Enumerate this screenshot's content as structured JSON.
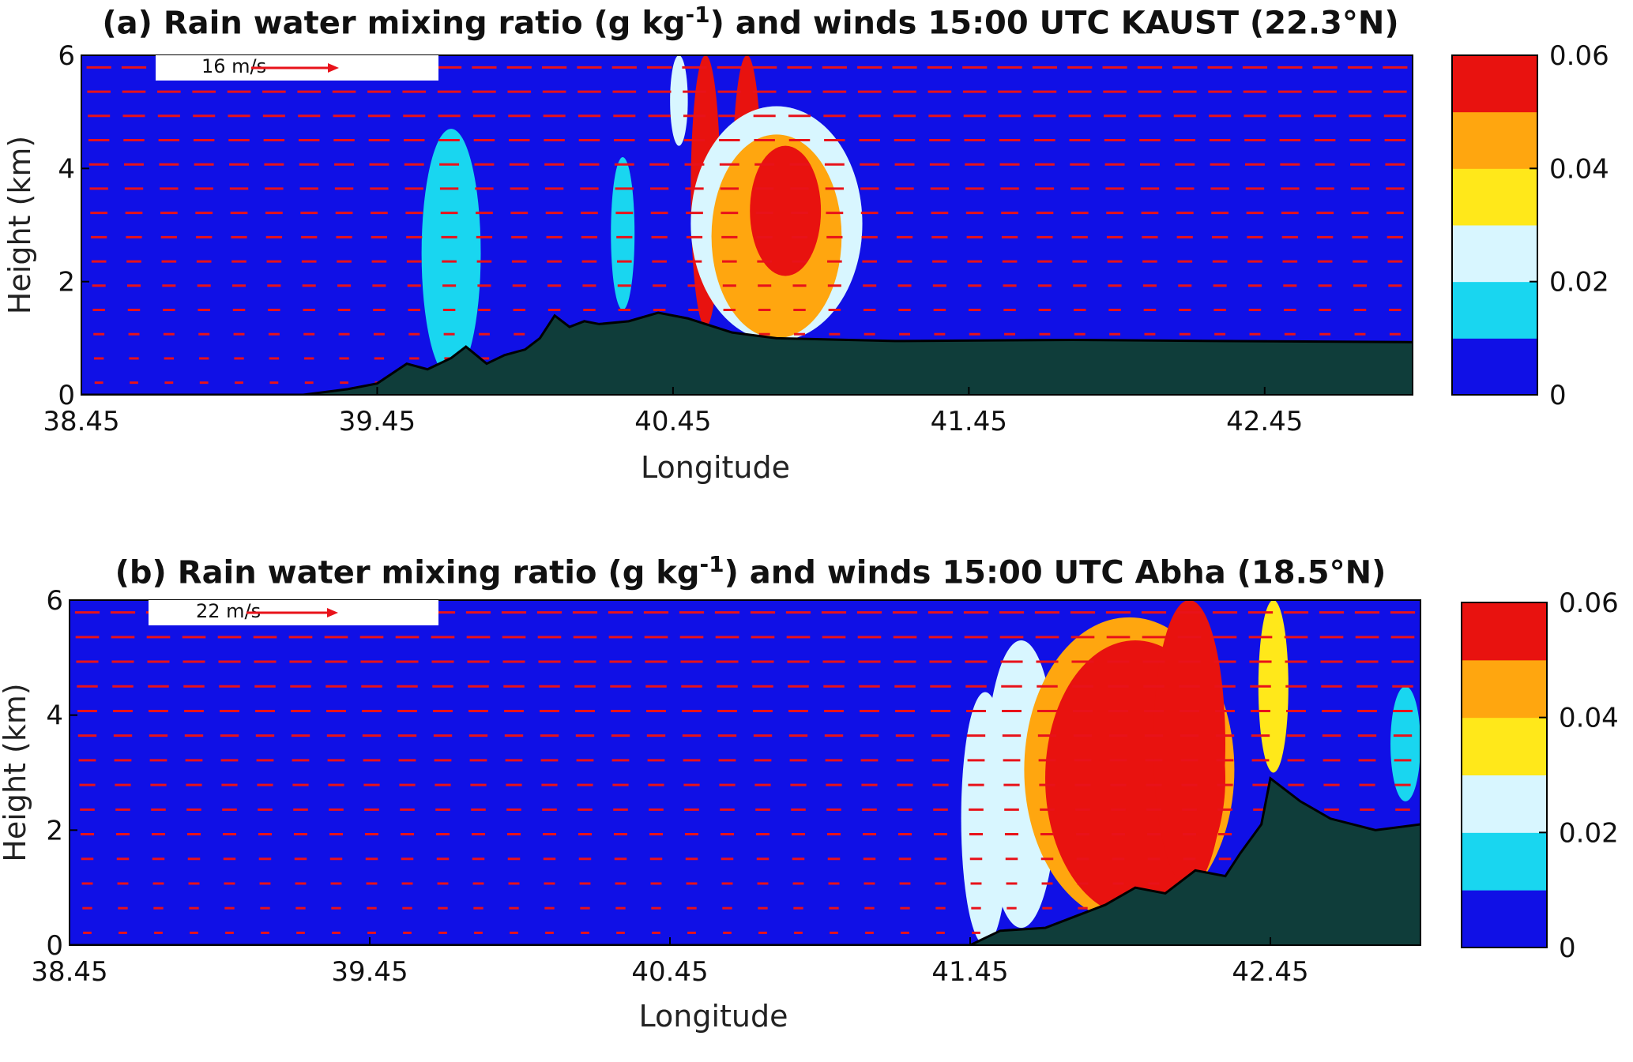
{
  "chart_data": [
    {
      "type": "heatmap",
      "title_parts": {
        "pre": "(a) Rain water mixing ratio (g kg",
        "sup": "-1",
        "post": ") and winds 15:00 UTC KAUST (22.3°N)"
      },
      "xlabel": "Longitude",
      "ylabel": "Height (km)",
      "xlim": [
        38.45,
        42.95
      ],
      "ylim": [
        0,
        6
      ],
      "x_ticks": [
        "38.45",
        "39.45",
        "40.45",
        "41.45",
        "42.45"
      ],
      "y_ticks": [
        "0",
        "2",
        "4",
        "6"
      ],
      "colorbar": {
        "ticks": [
          "0",
          "0.02",
          "0.04",
          "0.06"
        ],
        "range": [
          0,
          0.06
        ],
        "levels": [
          "#1010e6",
          "#19d6f0",
          "#d8f6ff",
          "#ffe81a",
          "#ffa60f",
          "#e8120f"
        ]
      },
      "wind_reference": {
        "label": "16 m/s"
      },
      "background_color": "#1010e6",
      "terrain_color": "#0f3d3a",
      "vector_color": "#e8121a",
      "terrain_km": [
        [
          38.45,
          0.0
        ],
        [
          39.2,
          0.0
        ],
        [
          39.35,
          0.1
        ],
        [
          39.45,
          0.2
        ],
        [
          39.55,
          0.55
        ],
        [
          39.62,
          0.45
        ],
        [
          39.7,
          0.65
        ],
        [
          39.75,
          0.85
        ],
        [
          39.82,
          0.55
        ],
        [
          39.88,
          0.7
        ],
        [
          39.95,
          0.8
        ],
        [
          40.0,
          1.0
        ],
        [
          40.05,
          1.4
        ],
        [
          40.1,
          1.2
        ],
        [
          40.15,
          1.3
        ],
        [
          40.2,
          1.25
        ],
        [
          40.3,
          1.3
        ],
        [
          40.4,
          1.45
        ],
        [
          40.5,
          1.35
        ],
        [
          40.65,
          1.1
        ],
        [
          40.8,
          1.0
        ],
        [
          41.2,
          0.95
        ],
        [
          41.8,
          0.97
        ],
        [
          42.3,
          0.95
        ],
        [
          42.95,
          0.93
        ]
      ],
      "rain_regions": [
        {
          "label": "cell-39.7",
          "x_center": 39.7,
          "x_half_width": 0.1,
          "y_bottom": 0.3,
          "y_top": 4.7,
          "value": 0.015
        },
        {
          "label": "cell-40.3",
          "x_center": 40.28,
          "x_half_width": 0.04,
          "y_bottom": 1.5,
          "y_top": 4.2,
          "value": 0.01
        },
        {
          "label": "cell-40.5",
          "x_center": 40.47,
          "x_half_width": 0.03,
          "y_bottom": 4.4,
          "y_top": 6.0,
          "value": 0.02
        },
        {
          "label": "core-40.55",
          "x_center": 40.56,
          "x_half_width": 0.05,
          "y_bottom": 1.2,
          "y_top": 6.0,
          "value": 0.06
        },
        {
          "label": "core-40.65",
          "x_center": 40.7,
          "x_half_width": 0.05,
          "y_bottom": 1.2,
          "y_top": 6.0,
          "value": 0.06
        },
        {
          "label": "cell-40.75",
          "x_center": 40.8,
          "x_half_width": 0.29,
          "y_bottom": 0.95,
          "y_top": 5.1,
          "value": 0.02
        },
        {
          "label": "cell-40.75-mid",
          "x_center": 40.8,
          "x_half_width": 0.22,
          "y_bottom": 1.0,
          "y_top": 4.6,
          "value": 0.04
        },
        {
          "label": "core-40.9",
          "x_center": 40.83,
          "x_half_width": 0.12,
          "y_bottom": 2.1,
          "y_top": 4.4,
          "value": 0.06
        }
      ]
    },
    {
      "type": "heatmap",
      "title_parts": {
        "pre": "(b) Rain water mixing ratio (g kg",
        "sup": "-1",
        "post": ") and winds 15:00 UTC Abha (18.5°N)"
      },
      "xlabel": "Longitude",
      "ylabel": "Height (km)",
      "xlim": [
        38.45,
        42.95
      ],
      "ylim": [
        0,
        6
      ],
      "x_ticks": [
        "38.45",
        "39.45",
        "40.45",
        "41.45",
        "42.45"
      ],
      "y_ticks": [
        "0",
        "2",
        "4",
        "6"
      ],
      "colorbar": {
        "ticks": [
          "0",
          "0.02",
          "0.04",
          "0.06"
        ],
        "range": [
          0,
          0.06
        ],
        "levels": [
          "#1010e6",
          "#19d6f0",
          "#d8f6ff",
          "#ffe81a",
          "#ffa60f",
          "#e8120f"
        ]
      },
      "wind_reference": {
        "label": "22 m/s"
      },
      "background_color": "#1010e6",
      "terrain_color": "#0f3d3a",
      "vector_color": "#e8121a",
      "terrain_km": [
        [
          38.45,
          0.0
        ],
        [
          41.45,
          0.0
        ],
        [
          41.55,
          0.25
        ],
        [
          41.7,
          0.3
        ],
        [
          41.8,
          0.5
        ],
        [
          41.9,
          0.7
        ],
        [
          42.0,
          1.0
        ],
        [
          42.1,
          0.9
        ],
        [
          42.2,
          1.3
        ],
        [
          42.3,
          1.2
        ],
        [
          42.35,
          1.6
        ],
        [
          42.42,
          2.1
        ],
        [
          42.45,
          2.9
        ],
        [
          42.55,
          2.5
        ],
        [
          42.65,
          2.2
        ],
        [
          42.8,
          2.0
        ],
        [
          42.95,
          2.1
        ]
      ],
      "rain_regions": [
        {
          "label": "cell-41.45",
          "x_center": 41.5,
          "x_half_width": 0.08,
          "y_bottom": 0.0,
          "y_top": 4.4,
          "value": 0.02
        },
        {
          "label": "cell-41.6",
          "x_center": 41.62,
          "x_half_width": 0.12,
          "y_bottom": 0.3,
          "y_top": 5.3,
          "value": 0.02
        },
        {
          "label": "cell-41.8-edge",
          "x_center": 41.98,
          "x_half_width": 0.35,
          "y_bottom": 0.4,
          "y_top": 5.7,
          "value": 0.04
        },
        {
          "label": "core-41.9",
          "x_center": 42.0,
          "x_half_width": 0.3,
          "y_bottom": 0.5,
          "y_top": 5.3,
          "value": 0.06
        },
        {
          "label": "core-42.2",
          "x_center": 42.18,
          "x_half_width": 0.12,
          "y_bottom": 1.0,
          "y_top": 6.0,
          "value": 0.06
        },
        {
          "label": "cell-42.45",
          "x_center": 42.46,
          "x_half_width": 0.05,
          "y_bottom": 3.0,
          "y_top": 6.0,
          "value": 0.03
        },
        {
          "label": "cell-42.9",
          "x_center": 42.9,
          "x_half_width": 0.05,
          "y_bottom": 2.5,
          "y_top": 4.5,
          "value": 0.015
        }
      ]
    }
  ]
}
